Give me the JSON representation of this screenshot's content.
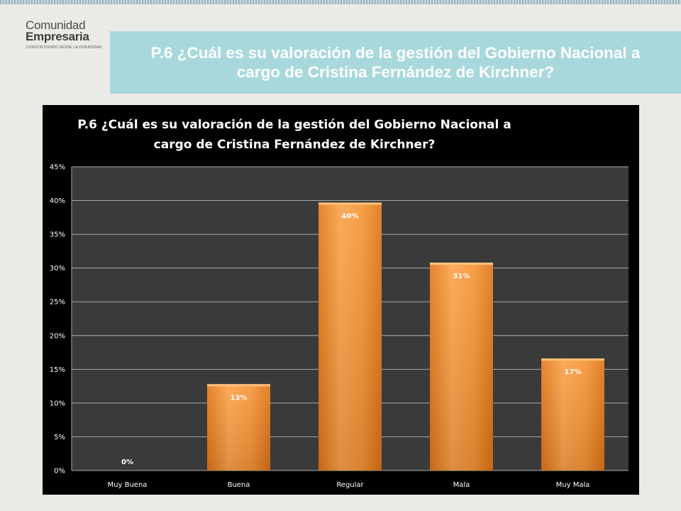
{
  "logo": {
    "line1": "Comunidad",
    "line2": "Empresaria",
    "tagline": "CONSTRUYENDO DESDE LA DIVERSIDAD"
  },
  "slide_title": "P.6 ¿Cuál es su valoración de la gestión del Gobierno Nacional a cargo de Cristina Fernández de Kirchner?",
  "colors": {
    "banner": "#a8d8dc",
    "bar": "#f59a3a",
    "plot_bg": "#3a3a3a",
    "chart_bg": "#000000"
  },
  "chart_data": {
    "type": "bar",
    "title": "P.6 ¿Cuál es su valoración de la gestión del Gobierno Nacional a cargo de Cristina Fernández de Kirchner?",
    "xlabel": "",
    "ylabel": "",
    "categories": [
      "Muy Buena",
      "Buena",
      "Regular",
      "Mala",
      "Muy Mala"
    ],
    "values": [
      0,
      13,
      40,
      31,
      17
    ],
    "plotted_values": [
      0,
      12.8,
      39.7,
      30.8,
      16.6
    ],
    "data_labels": [
      "0%",
      "13%",
      "40%",
      "31%",
      "17%"
    ],
    "ylim": [
      0,
      45
    ],
    "yticks": [
      0,
      5,
      10,
      15,
      20,
      25,
      30,
      35,
      40,
      45
    ],
    "ytick_labels": [
      "0%",
      "5%",
      "10%",
      "15%",
      "20%",
      "25%",
      "30%",
      "35%",
      "40%",
      "45%"
    ],
    "grid": true,
    "legend": "none"
  }
}
